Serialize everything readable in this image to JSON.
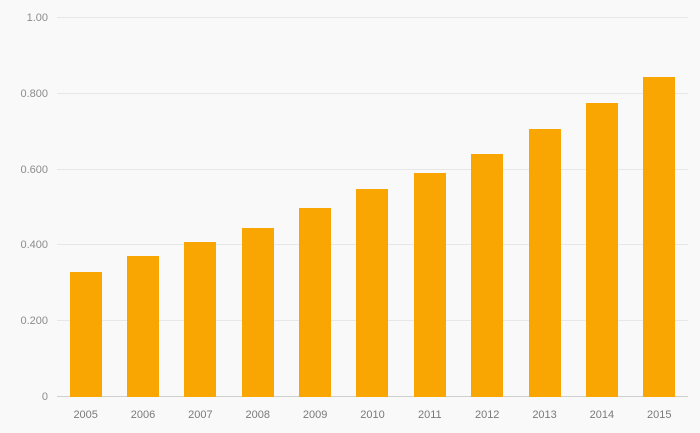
{
  "chart_data": {
    "type": "bar",
    "title": "",
    "xlabel": "",
    "ylabel": "",
    "categories": [
      "2005",
      "2006",
      "2007",
      "2008",
      "2009",
      "2010",
      "2011",
      "2012",
      "2013",
      "2014",
      "2015"
    ],
    "values": [
      0.33,
      0.372,
      0.408,
      0.447,
      0.498,
      0.55,
      0.59,
      0.641,
      0.708,
      0.777,
      0.845
    ],
    "ylim": [
      0,
      1.0
    ],
    "yticks": [
      0,
      0.2,
      0.4,
      0.6,
      0.8,
      1.0
    ],
    "ytick_labels": [
      "0",
      "0.200",
      "0.400",
      "0.600",
      "0.800",
      "1.00"
    ],
    "grid": true,
    "legend": "none",
    "bar_color": "#F9A602",
    "background_color": "#f9f9f9",
    "gridline_color": "#e7e7e7",
    "axis_label_color": "#8c8c8c"
  }
}
